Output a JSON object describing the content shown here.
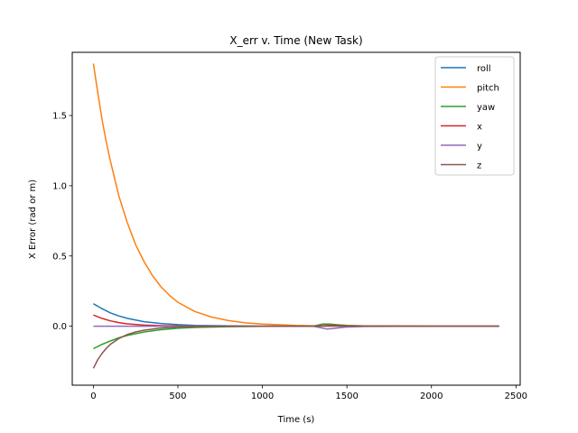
{
  "chart_data": {
    "type": "line",
    "title": "X_err v. Time (New Task)",
    "xlabel": "Time (s)",
    "ylabel": "X Error (rad or m)",
    "xlim": [
      -125,
      2525
    ],
    "ylim": [
      -0.42,
      1.95
    ],
    "xticks": [
      0,
      500,
      1000,
      1500,
      2000,
      2500
    ],
    "xtick_labels": [
      "0",
      "500",
      "1000",
      "1500",
      "2000",
      "2500"
    ],
    "yticks": [
      0.0,
      0.5,
      1.0,
      1.5
    ],
    "ytick_labels": [
      "0.0",
      "0.5",
      "1.0",
      "1.5"
    ],
    "grid": false,
    "legend_position": "top-right",
    "series": [
      {
        "name": "roll",
        "color": "#1f77b4",
        "x": [
          0,
          50,
          100,
          150,
          200,
          300,
          400,
          500,
          600,
          800,
          1000,
          1200,
          1300,
          1350,
          1400,
          1450,
          1500,
          1600,
          2000,
          2400
        ],
        "y": [
          0.16,
          0.125,
          0.095,
          0.073,
          0.056,
          0.032,
          0.019,
          0.011,
          0.006,
          0.002,
          0.0,
          0.0,
          0.0,
          0.002,
          0.004,
          0.003,
          0.002,
          0.001,
          0.0,
          0.0
        ]
      },
      {
        "name": "pitch",
        "color": "#ff7f0e",
        "x": [
          0,
          25,
          50,
          75,
          100,
          150,
          200,
          250,
          300,
          350,
          400,
          450,
          500,
          600,
          700,
          800,
          900,
          1000,
          1200,
          1300,
          1350,
          1400,
          1450,
          1500,
          1600,
          2000,
          2400
        ],
        "y": [
          1.87,
          1.67,
          1.48,
          1.32,
          1.18,
          0.93,
          0.74,
          0.58,
          0.46,
          0.36,
          0.28,
          0.22,
          0.17,
          0.105,
          0.065,
          0.04,
          0.024,
          0.015,
          0.005,
          0.003,
          0.0,
          0.003,
          0.004,
          0.002,
          0.001,
          0.0,
          0.0
        ]
      },
      {
        "name": "yaw",
        "color": "#2ca02c",
        "x": [
          0,
          50,
          100,
          150,
          200,
          300,
          400,
          500,
          600,
          800,
          1000,
          1200,
          1300,
          1330,
          1360,
          1400,
          1450,
          1500,
          1600,
          2000,
          2400
        ],
        "y": [
          -0.16,
          -0.13,
          -0.105,
          -0.083,
          -0.066,
          -0.041,
          -0.025,
          -0.015,
          -0.009,
          -0.003,
          -0.001,
          0.0,
          0.0,
          0.008,
          0.016,
          0.015,
          0.01,
          0.006,
          0.002,
          0.0,
          0.0
        ]
      },
      {
        "name": "x",
        "color": "#d62728",
        "x": [
          0,
          50,
          100,
          150,
          200,
          300,
          400,
          500,
          700,
          1000,
          1300,
          1350,
          1400,
          1450,
          1500,
          1600,
          2000,
          2400
        ],
        "y": [
          0.08,
          0.056,
          0.038,
          0.026,
          0.017,
          0.008,
          0.004,
          0.002,
          0.0,
          0.0,
          0.0,
          0.003,
          0.006,
          0.004,
          0.002,
          0.001,
          0.0,
          0.0
        ]
      },
      {
        "name": "y",
        "color": "#9467bd",
        "x": [
          0,
          100,
          300,
          500,
          1000,
          1200,
          1300,
          1340,
          1380,
          1420,
          1460,
          1500,
          1600,
          2000,
          2400
        ],
        "y": [
          0.0,
          0.0,
          0.0,
          0.0,
          0.0,
          0.0,
          0.0,
          -0.01,
          -0.02,
          -0.016,
          -0.01,
          -0.006,
          -0.002,
          0.0,
          0.0
        ]
      },
      {
        "name": "z",
        "color": "#8c564b",
        "x": [
          0,
          25,
          50,
          75,
          100,
          150,
          200,
          250,
          300,
          400,
          500,
          600,
          800,
          1000,
          1300,
          1400,
          1500,
          2000,
          2400
        ],
        "y": [
          -0.3,
          -0.24,
          -0.195,
          -0.16,
          -0.13,
          -0.088,
          -0.06,
          -0.041,
          -0.028,
          -0.013,
          -0.006,
          -0.003,
          -0.001,
          0.0,
          0.0,
          0.001,
          0.0,
          0.0,
          0.0
        ]
      }
    ]
  }
}
